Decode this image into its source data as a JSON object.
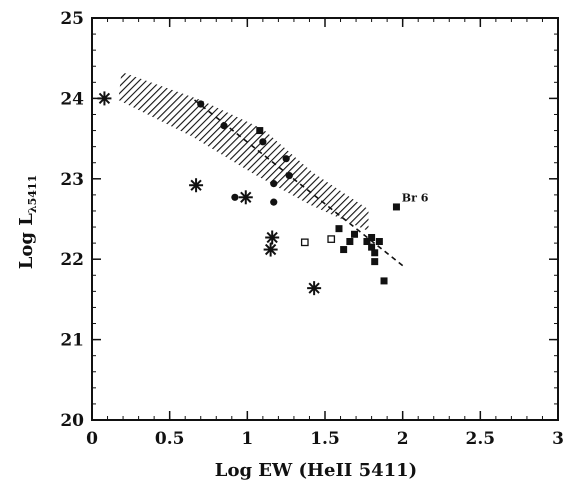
{
  "chart_data": {
    "type": "scatter",
    "title": "",
    "xlabel": "Log EW (HeII 5411)",
    "ylabel_main": "Log L",
    "ylabel_sub": "λ5411",
    "xlim": [
      0,
      3
    ],
    "ylim": [
      20,
      25
    ],
    "xticks": [
      "0",
      "0.5",
      "1",
      "1.5",
      "2",
      "2.5",
      "3"
    ],
    "yticks": [
      "20",
      "21",
      "22",
      "23",
      "24",
      "25"
    ],
    "grid": false,
    "legend": "none",
    "annotations": [
      {
        "text": "Br 6",
        "x": 2.08,
        "y": 22.72
      }
    ],
    "band": {
      "description": "hatched region",
      "upper": [
        [
          0.19,
          24.33
        ],
        [
          0.7,
          23.98
        ],
        [
          1.1,
          23.62
        ],
        [
          1.42,
          23.08
        ],
        [
          1.78,
          22.62
        ]
      ],
      "lower": [
        [
          0.17,
          23.98
        ],
        [
          0.65,
          23.52
        ],
        [
          1.05,
          23.05
        ],
        [
          1.4,
          22.68
        ],
        [
          1.78,
          22.35
        ]
      ]
    },
    "series": [
      {
        "marker": "asterisk",
        "points": [
          [
            0.08,
            24.0
          ],
          [
            0.67,
            22.92
          ],
          [
            0.99,
            22.77
          ],
          [
            1.16,
            22.27
          ],
          [
            1.15,
            22.12
          ],
          [
            1.43,
            21.64
          ]
        ]
      },
      {
        "marker": "filled-circle",
        "points": [
          [
            0.7,
            23.93
          ],
          [
            0.85,
            23.66
          ],
          [
            0.92,
            22.77
          ],
          [
            1.1,
            23.46
          ],
          [
            1.17,
            22.94
          ],
          [
            1.17,
            22.71
          ],
          [
            1.25,
            23.25
          ],
          [
            1.27,
            23.04
          ]
        ]
      },
      {
        "marker": "filled-square",
        "points": [
          [
            1.08,
            23.6
          ],
          [
            1.59,
            22.38
          ],
          [
            1.62,
            22.12
          ],
          [
            1.66,
            22.22
          ],
          [
            1.69,
            22.31
          ],
          [
            1.77,
            22.22
          ],
          [
            1.8,
            22.27
          ],
          [
            1.8,
            22.15
          ],
          [
            1.82,
            22.08
          ],
          [
            1.82,
            21.97
          ],
          [
            1.85,
            22.22
          ],
          [
            1.88,
            21.73
          ],
          [
            1.96,
            22.65
          ]
        ]
      },
      {
        "marker": "open-square",
        "points": [
          [
            1.37,
            22.21
          ],
          [
            1.54,
            22.25
          ]
        ]
      }
    ],
    "fit_line": {
      "style": "dashed",
      "points": [
        [
          0.66,
          23.98
        ],
        [
          2.0,
          21.92
        ]
      ]
    }
  }
}
